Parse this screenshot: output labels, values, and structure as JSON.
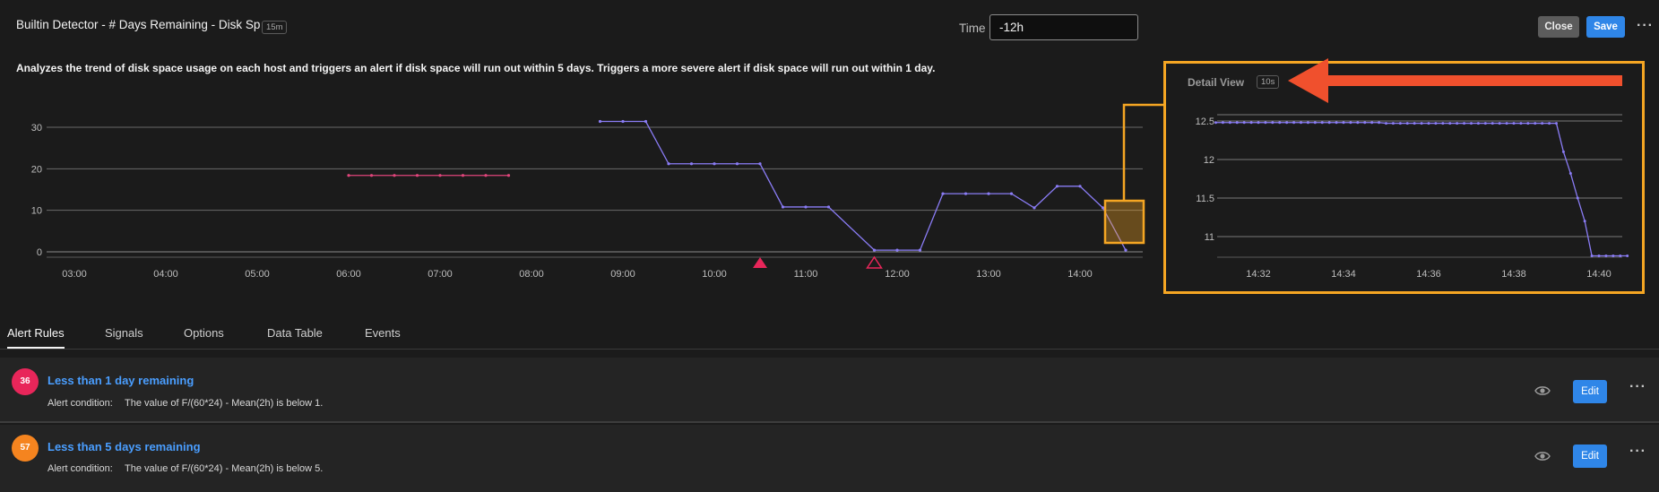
{
  "header": {
    "title": "Builtin Detector - # Days Remaining - Disk Sp",
    "resolution_badge": "15m",
    "time_label": "Time",
    "time_value": "-12h",
    "close_label": "Close",
    "save_label": "Save",
    "more_label": "···"
  },
  "description": "Analyzes the trend of disk space usage on each host and triggers an alert if disk space will run out within 5 days. Triggers a more severe alert if disk space will run out within 1 day.",
  "chart_data": [
    {
      "type": "line",
      "x_ticks": [
        "03:00",
        "04:00",
        "05:00",
        "06:00",
        "07:00",
        "08:00",
        "09:00",
        "10:00",
        "11:00",
        "12:00",
        "13:00",
        "14:00"
      ],
      "y_ticks": [
        0,
        10,
        20,
        30
      ],
      "ylim": [
        0,
        33
      ],
      "grid": true,
      "series": [
        {
          "color": "#e0457b",
          "points": [
            [
              "06:00",
              18.4
            ],
            [
              "06:15",
              18.4
            ],
            [
              "06:30",
              18.4
            ],
            [
              "06:45",
              18.4
            ],
            [
              "07:00",
              18.4
            ],
            [
              "07:15",
              18.4
            ],
            [
              "07:30",
              18.4
            ],
            [
              "07:45",
              18.4
            ]
          ]
        },
        {
          "color": "#8a7cf5",
          "points": [
            [
              "08:45",
              31.4
            ],
            [
              "09:00",
              31.4
            ],
            [
              "09:15",
              31.4
            ],
            [
              "09:30",
              21.2
            ],
            [
              "09:45",
              21.2
            ],
            [
              "10:00",
              21.2
            ],
            [
              "10:15",
              21.2
            ],
            [
              "10:30",
              21.2
            ],
            [
              "10:45",
              10.8
            ],
            [
              "11:00",
              10.8
            ],
            [
              "11:15",
              10.8
            ],
            [
              "11:45",
              0.4
            ],
            [
              "12:00",
              0.4
            ],
            [
              "12:15",
              0.4
            ],
            [
              "12:30",
              14.0
            ],
            [
              "12:45",
              14.0
            ],
            [
              "13:00",
              14.0
            ],
            [
              "13:15",
              14.0
            ],
            [
              "13:30",
              10.6
            ],
            [
              "13:45",
              15.8
            ],
            [
              "14:00",
              15.8
            ],
            [
              "14:15",
              10.6
            ],
            [
              "14:30",
              0.4
            ]
          ]
        }
      ],
      "alert_markers": [
        {
          "time": "10:30",
          "style": "filled",
          "color": "#e8265a"
        },
        {
          "time": "11:45",
          "style": "outline",
          "color": "#e8265a"
        }
      ]
    },
    {
      "type": "line",
      "title": "Detail View",
      "resolution_badge": "10s",
      "x_ticks": [
        "14:32",
        "14:34",
        "14:36",
        "14:38",
        "14:40"
      ],
      "y_ticks": [
        "11",
        "11.5",
        "12",
        "12.5"
      ],
      "ylim": [
        10.7,
        12.6
      ],
      "grid": true,
      "series": [
        {
          "color": "#8a7cf5",
          "points": [
            [
              "14:31:00",
              12.48
            ],
            [
              "14:31:10",
              12.48
            ],
            [
              "14:31:20",
              12.48
            ],
            [
              "14:31:30",
              12.48
            ],
            [
              "14:31:40",
              12.48
            ],
            [
              "14:31:50",
              12.48
            ],
            [
              "14:32:00",
              12.48
            ],
            [
              "14:32:10",
              12.48
            ],
            [
              "14:32:20",
              12.48
            ],
            [
              "14:32:30",
              12.48
            ],
            [
              "14:32:40",
              12.48
            ],
            [
              "14:32:50",
              12.48
            ],
            [
              "14:33:00",
              12.48
            ],
            [
              "14:33:10",
              12.48
            ],
            [
              "14:33:20",
              12.48
            ],
            [
              "14:33:30",
              12.48
            ],
            [
              "14:33:40",
              12.48
            ],
            [
              "14:33:50",
              12.48
            ],
            [
              "14:34:00",
              12.48
            ],
            [
              "14:34:10",
              12.48
            ],
            [
              "14:34:20",
              12.48
            ],
            [
              "14:34:30",
              12.48
            ],
            [
              "14:34:40",
              12.48
            ],
            [
              "14:34:50",
              12.48
            ],
            [
              "14:35:00",
              12.47
            ],
            [
              "14:35:10",
              12.47
            ],
            [
              "14:35:20",
              12.47
            ],
            [
              "14:35:30",
              12.47
            ],
            [
              "14:35:40",
              12.47
            ],
            [
              "14:35:50",
              12.47
            ],
            [
              "14:36:00",
              12.47
            ],
            [
              "14:36:10",
              12.47
            ],
            [
              "14:36:20",
              12.47
            ],
            [
              "14:36:30",
              12.47
            ],
            [
              "14:36:40",
              12.47
            ],
            [
              "14:36:50",
              12.47
            ],
            [
              "14:37:00",
              12.47
            ],
            [
              "14:37:10",
              12.47
            ],
            [
              "14:37:20",
              12.47
            ],
            [
              "14:37:30",
              12.47
            ],
            [
              "14:37:40",
              12.47
            ],
            [
              "14:37:50",
              12.47
            ],
            [
              "14:38:00",
              12.47
            ],
            [
              "14:38:10",
              12.47
            ],
            [
              "14:38:20",
              12.47
            ],
            [
              "14:38:30",
              12.47
            ],
            [
              "14:38:40",
              12.47
            ],
            [
              "14:38:50",
              12.47
            ],
            [
              "14:39:00",
              12.47
            ],
            [
              "14:39:10",
              12.1
            ],
            [
              "14:39:20",
              11.82
            ],
            [
              "14:39:30",
              11.5
            ],
            [
              "14:39:40",
              11.2
            ],
            [
              "14:39:50",
              10.75
            ],
            [
              "14:40:00",
              10.75
            ],
            [
              "14:40:10",
              10.75
            ],
            [
              "14:40:20",
              10.75
            ],
            [
              "14:40:30",
              10.75
            ],
            [
              "14:40:40",
              10.75
            ]
          ]
        }
      ]
    }
  ],
  "highlight_colors": {
    "zoom_box": "#f5a623",
    "arrow": "#f0502d"
  },
  "tabs": [
    {
      "label": "Alert Rules",
      "active": true
    },
    {
      "label": "Signals",
      "active": false
    },
    {
      "label": "Options",
      "active": false
    },
    {
      "label": "Data Table",
      "active": false
    },
    {
      "label": "Events",
      "active": false
    }
  ],
  "alert_rules": [
    {
      "count": "36",
      "color": "#e8265a",
      "name": "Less than 1 day remaining",
      "condition_label": "Alert condition:",
      "condition": "The value of F/(60*24) - Mean(2h) is below 1.",
      "edit_label": "Edit",
      "more_label": "···"
    },
    {
      "count": "57",
      "color": "#f5841f",
      "name": "Less than 5 days remaining",
      "condition_label": "Alert condition:",
      "condition": "The value of F/(60*24) - Mean(2h) is below 5.",
      "edit_label": "Edit",
      "more_label": "···"
    }
  ]
}
